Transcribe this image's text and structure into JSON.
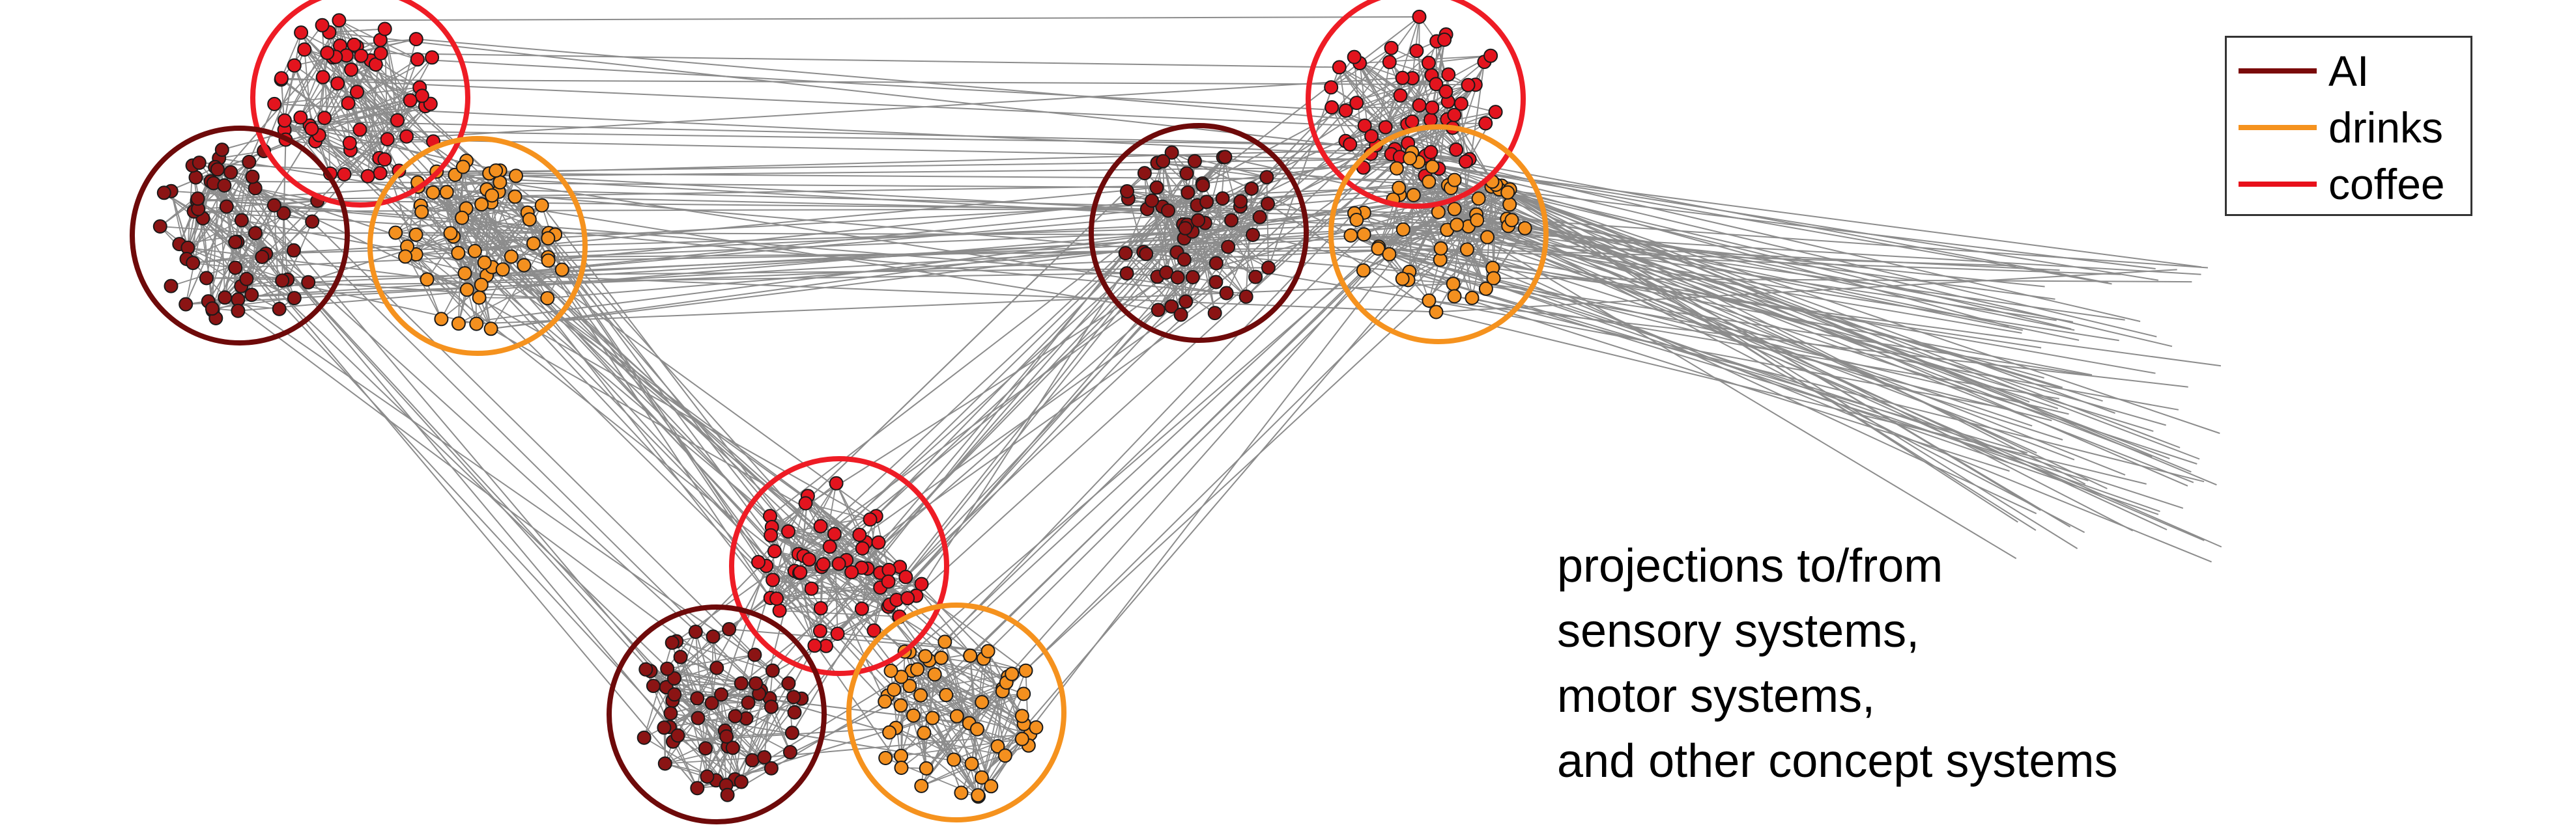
{
  "legend": {
    "items": [
      {
        "label": "AI",
        "color": "#7a0a0a"
      },
      {
        "label": "drinks",
        "color": "#f5921e"
      },
      {
        "label": "coffee",
        "color": "#e8101b"
      }
    ]
  },
  "caption": {
    "lines": [
      "projections to/from",
      "sensory systems,",
      "motor systems,",
      "and other concept systems"
    ]
  },
  "colors": {
    "ai_node": "#8b1414",
    "drinks_node": "#f4901f",
    "coffee_node": "#e3141e",
    "edge": "#8c8c8c",
    "node_outline": "#1a1a1a"
  },
  "clusters": [
    {
      "system": "top-left",
      "concept": "coffee"
    },
    {
      "system": "top-left",
      "concept": "AI"
    },
    {
      "system": "top-left",
      "concept": "drinks"
    },
    {
      "system": "top-right",
      "concept": "coffee"
    },
    {
      "system": "top-right",
      "concept": "AI"
    },
    {
      "system": "top-right",
      "concept": "drinks"
    },
    {
      "system": "bottom",
      "concept": "coffee"
    },
    {
      "system": "bottom",
      "concept": "AI"
    },
    {
      "system": "bottom",
      "concept": "drinks"
    }
  ]
}
